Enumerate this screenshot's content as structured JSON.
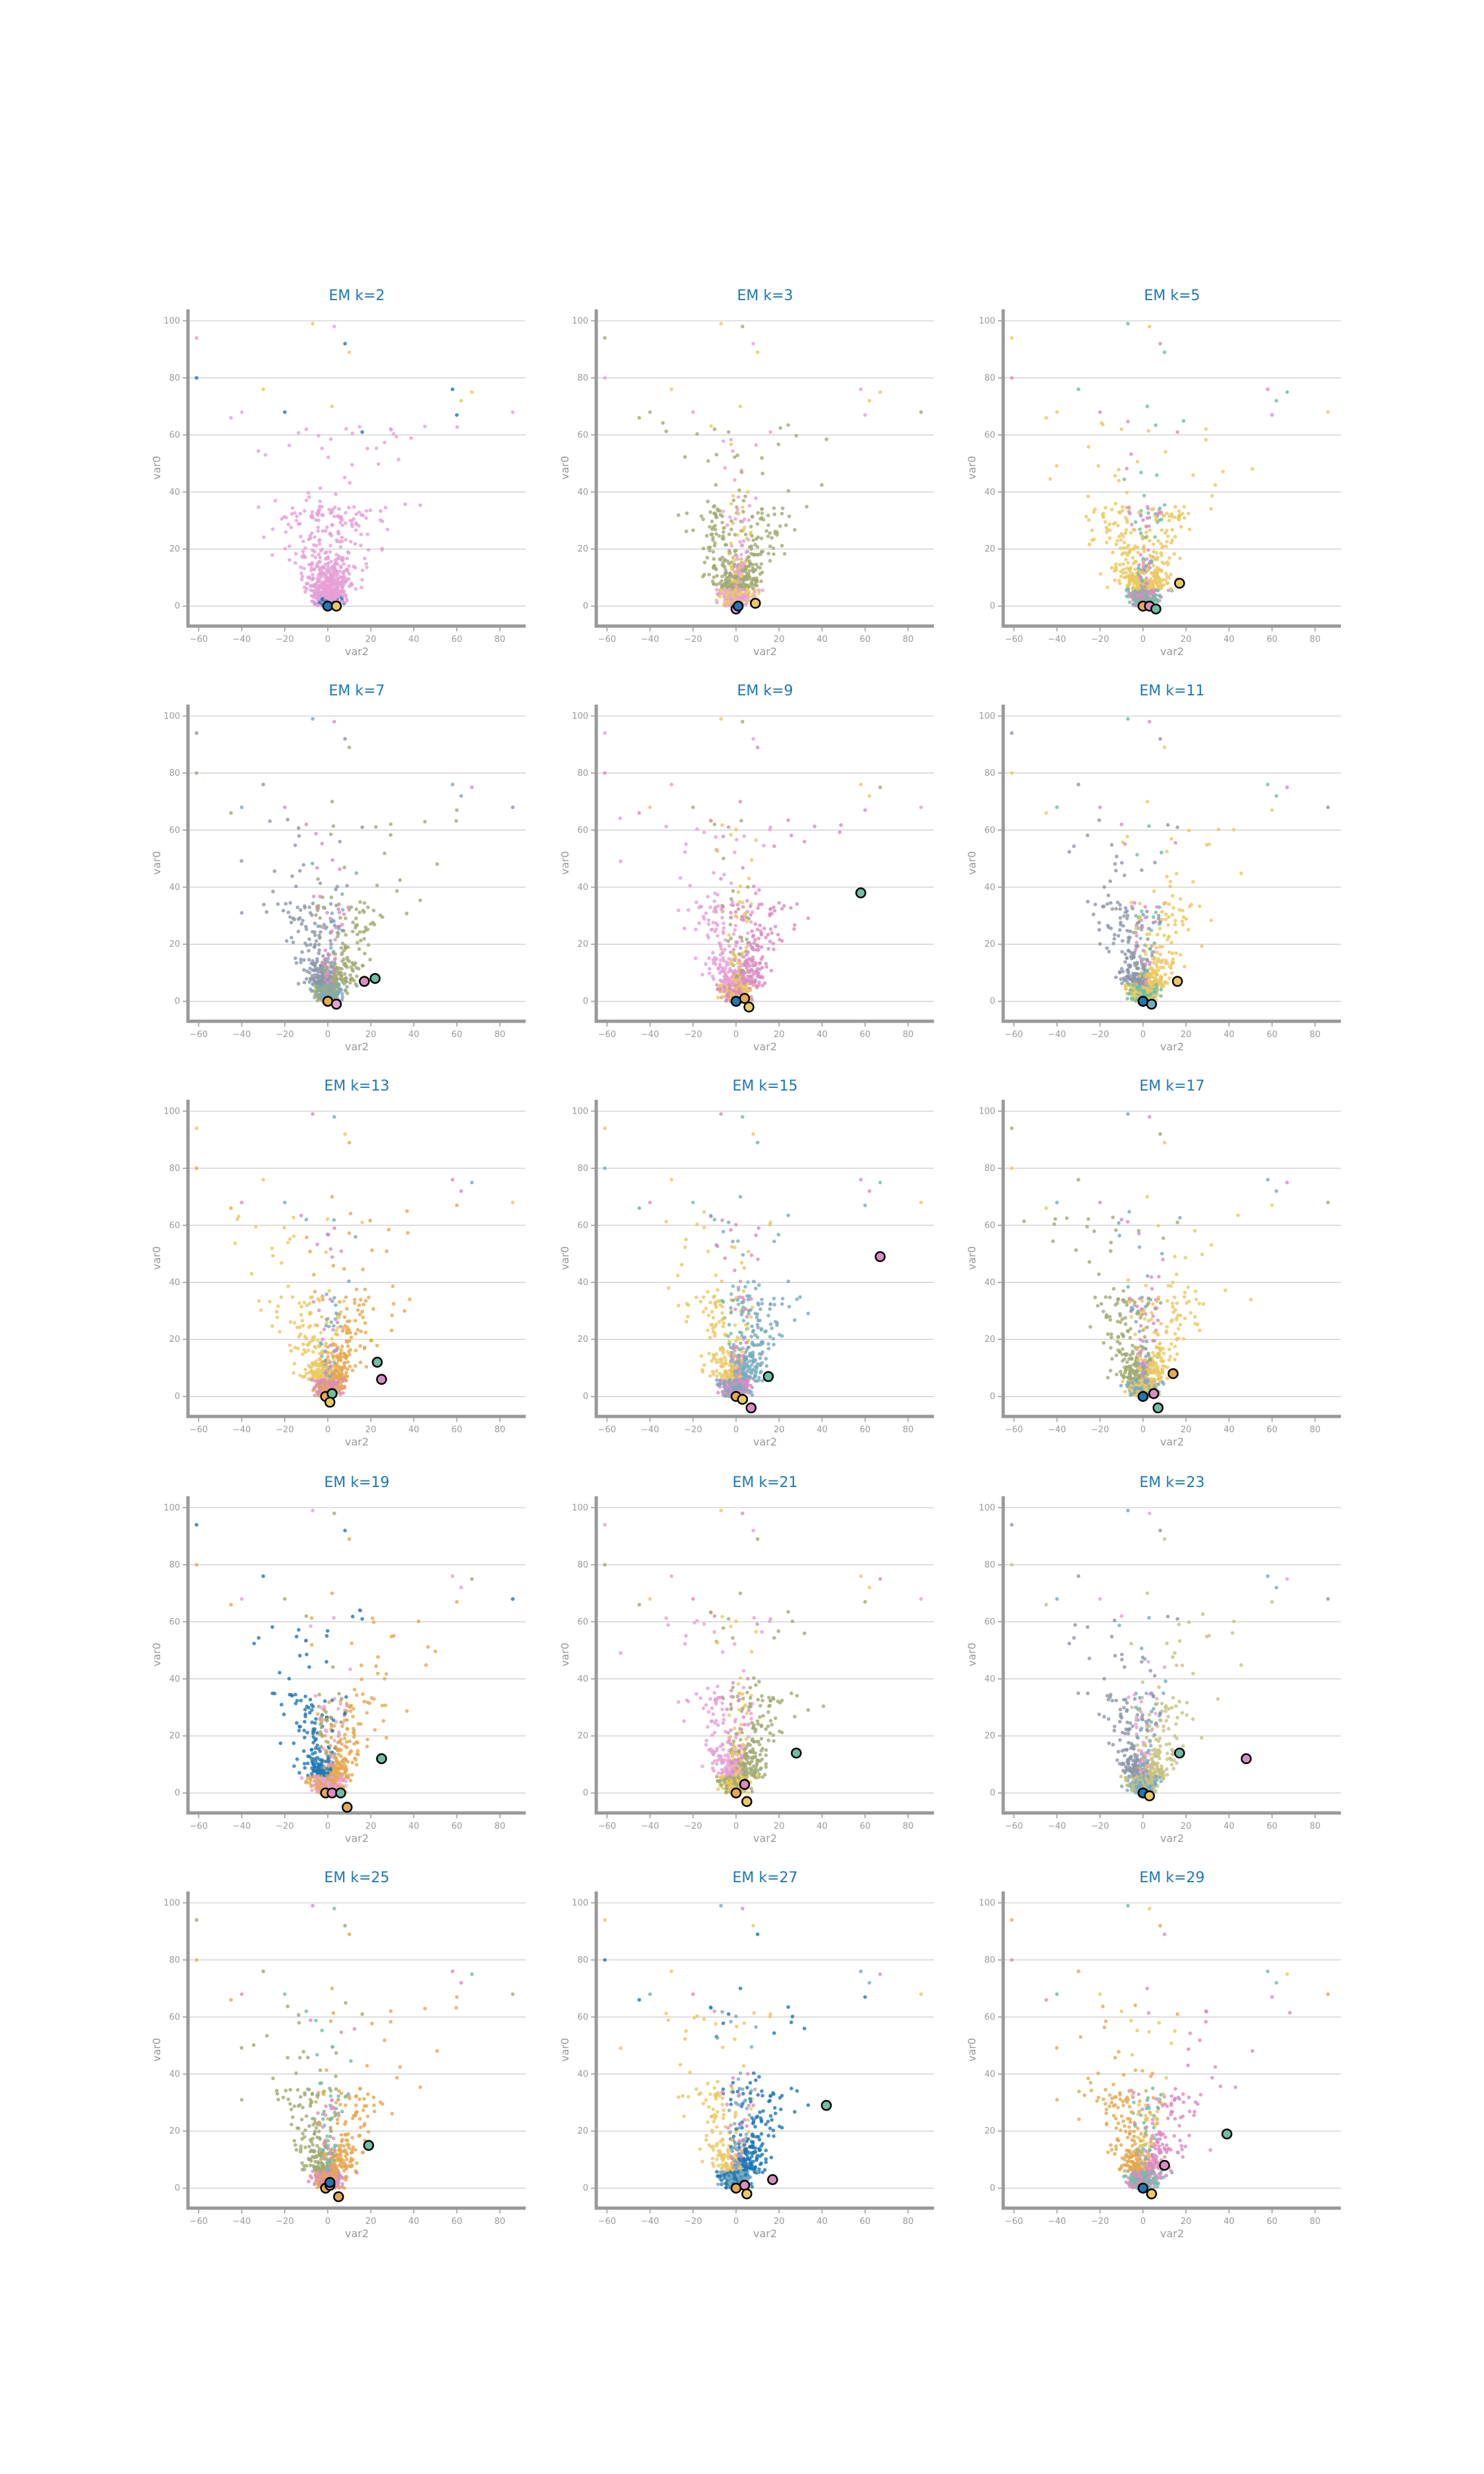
{
  "palette": [
    "#e6a0d6",
    "#a0aa73",
    "#ebc862",
    "#8c96aa",
    "#d98cc0",
    "#6ebea5",
    "#e6a850",
    "#78aabe",
    "#1f77b4",
    "#c8c082"
  ],
  "chart_data": [
    {
      "type": "scatter",
      "title": "EM k=2",
      "xlabel": "var2",
      "ylabel": "var0",
      "xlim": [
        -65,
        92
      ],
      "ylim": [
        -7,
        104
      ],
      "xticks": [
        -60,
        -40,
        -20,
        0,
        20,
        40,
        60,
        80
      ],
      "yticks": [
        0,
        20,
        40,
        60,
        80,
        100
      ],
      "grid": "horizontal",
      "dominant_colors": [
        "#e6a0d6",
        "#1f77b4",
        "#ebc862"
      ],
      "centroids": [
        {
          "x": 0,
          "y": 0,
          "color": "#1f77b4"
        },
        {
          "x": 4,
          "y": 0,
          "color": "#ebc862"
        }
      ]
    },
    {
      "type": "scatter",
      "title": "EM k=3",
      "xlabel": "var2",
      "ylabel": "var0",
      "xlim": [
        -65,
        92
      ],
      "ylim": [
        -7,
        104
      ],
      "xticks": [
        -60,
        -40,
        -20,
        0,
        20,
        40,
        60,
        80
      ],
      "yticks": [
        0,
        20,
        40,
        60,
        80,
        100
      ],
      "grid": "horizontal",
      "dominant_colors": [
        "#a0aa73",
        "#e6a0d6",
        "#ebc862"
      ],
      "centroids": [
        {
          "x": 0,
          "y": -1,
          "color": "#e6a0d6"
        },
        {
          "x": 1,
          "y": 0,
          "color": "#1f77b4"
        },
        {
          "x": 9,
          "y": 1,
          "color": "#ebc862"
        }
      ]
    },
    {
      "type": "scatter",
      "title": "EM k=5",
      "xlabel": "var2",
      "ylabel": "var0",
      "xlim": [
        -65,
        92
      ],
      "ylim": [
        -7,
        104
      ],
      "xticks": [
        -60,
        -40,
        -20,
        0,
        20,
        40,
        60,
        80
      ],
      "yticks": [
        0,
        20,
        40,
        60,
        80,
        100
      ],
      "grid": "horizontal",
      "dominant_colors": [
        "#ebc862",
        "#d98cc0",
        "#6ebea5"
      ],
      "centroids": [
        {
          "x": 0,
          "y": 0,
          "color": "#e6a850"
        },
        {
          "x": 3,
          "y": 0,
          "color": "#d98cc0"
        },
        {
          "x": 6,
          "y": -1,
          "color": "#6ebea5"
        },
        {
          "x": 17,
          "y": 8,
          "color": "#ebc862"
        }
      ]
    },
    {
      "type": "scatter",
      "title": "EM k=7",
      "xlabel": "var2",
      "ylabel": "var0",
      "xlim": [
        -65,
        92
      ],
      "ylim": [
        -7,
        104
      ],
      "xticks": [
        -60,
        -40,
        -20,
        0,
        20,
        40,
        60,
        80
      ],
      "yticks": [
        0,
        20,
        40,
        60,
        80,
        100
      ],
      "grid": "horizontal",
      "dominant_colors": [
        "#8c96aa",
        "#a0aa73",
        "#78aabe",
        "#d98cc0"
      ],
      "centroids": [
        {
          "x": 0,
          "y": 0,
          "color": "#e6a850"
        },
        {
          "x": 4,
          "y": -1,
          "color": "#e6a0d6"
        },
        {
          "x": 17,
          "y": 7,
          "color": "#d98cc0"
        },
        {
          "x": 22,
          "y": 8,
          "color": "#6ebea5"
        }
      ]
    },
    {
      "type": "scatter",
      "title": "EM k=9",
      "xlabel": "var2",
      "ylabel": "var0",
      "xlim": [
        -65,
        92
      ],
      "ylim": [
        -7,
        104
      ],
      "xticks": [
        -60,
        -40,
        -20,
        0,
        20,
        40,
        60,
        80
      ],
      "yticks": [
        0,
        20,
        40,
        60,
        80,
        100
      ],
      "grid": "horizontal",
      "dominant_colors": [
        "#e6a0d6",
        "#d98cc0",
        "#ebc862",
        "#a0aa73"
      ],
      "centroids": [
        {
          "x": 0,
          "y": 0,
          "color": "#1f77b4"
        },
        {
          "x": 4,
          "y": 1,
          "color": "#e6a850"
        },
        {
          "x": 6,
          "y": -2,
          "color": "#ebc862"
        },
        {
          "x": 58,
          "y": 38,
          "color": "#6ebea5"
        }
      ]
    },
    {
      "type": "scatter",
      "title": "EM k=11",
      "xlabel": "var2",
      "ylabel": "var0",
      "xlim": [
        -65,
        92
      ],
      "ylim": [
        -7,
        104
      ],
      "xticks": [
        -60,
        -40,
        -20,
        0,
        20,
        40,
        60,
        80
      ],
      "yticks": [
        0,
        20,
        40,
        60,
        80,
        100
      ],
      "grid": "horizontal",
      "dominant_colors": [
        "#8c96aa",
        "#ebc862",
        "#6ebea5",
        "#d98cc0"
      ],
      "centroids": [
        {
          "x": 0,
          "y": 0,
          "color": "#1f77b4"
        },
        {
          "x": 4,
          "y": -1,
          "color": "#78aabe"
        },
        {
          "x": 16,
          "y": 7,
          "color": "#ebc862"
        }
      ]
    },
    {
      "type": "scatter",
      "title": "EM k=13",
      "xlabel": "var2",
      "ylabel": "var0",
      "xlim": [
        -65,
        92
      ],
      "ylim": [
        -7,
        104
      ],
      "xticks": [
        -60,
        -40,
        -20,
        0,
        20,
        40,
        60,
        80
      ],
      "yticks": [
        0,
        20,
        40,
        60,
        80,
        100
      ],
      "grid": "horizontal",
      "dominant_colors": [
        "#ebc862",
        "#e6a850",
        "#d98cc0",
        "#78aabe"
      ],
      "centroids": [
        {
          "x": -1,
          "y": 0,
          "color": "#e6a850"
        },
        {
          "x": 2,
          "y": 1,
          "color": "#6ebea5"
        },
        {
          "x": 1,
          "y": -2,
          "color": "#ebc862"
        },
        {
          "x": 23,
          "y": 12,
          "color": "#6ebea5"
        },
        {
          "x": 25,
          "y": 6,
          "color": "#d98cc0"
        }
      ]
    },
    {
      "type": "scatter",
      "title": "EM k=15",
      "xlabel": "var2",
      "ylabel": "var0",
      "xlim": [
        -65,
        92
      ],
      "ylim": [
        -7,
        104
      ],
      "xticks": [
        -60,
        -40,
        -20,
        0,
        20,
        40,
        60,
        80
      ],
      "yticks": [
        0,
        20,
        40,
        60,
        80,
        100
      ],
      "grid": "horizontal",
      "dominant_colors": [
        "#ebc862",
        "#78aabe",
        "#d98cc0",
        "#6ebea5"
      ],
      "centroids": [
        {
          "x": 0,
          "y": 0,
          "color": "#e6a850"
        },
        {
          "x": 3,
          "y": -1,
          "color": "#ebc862"
        },
        {
          "x": 7,
          "y": -4,
          "color": "#d98cc0"
        },
        {
          "x": 15,
          "y": 7,
          "color": "#6ebea5"
        },
        {
          "x": 67,
          "y": 49,
          "color": "#d98cc0"
        }
      ]
    },
    {
      "type": "scatter",
      "title": "EM k=17",
      "xlabel": "var2",
      "ylabel": "var0",
      "xlim": [
        -65,
        92
      ],
      "ylim": [
        -7,
        104
      ],
      "xticks": [
        -60,
        -40,
        -20,
        0,
        20,
        40,
        60,
        80
      ],
      "yticks": [
        0,
        20,
        40,
        60,
        80,
        100
      ],
      "grid": "horizontal",
      "dominant_colors": [
        "#a0aa73",
        "#ebc862",
        "#78aabe",
        "#d98cc0"
      ],
      "centroids": [
        {
          "x": 0,
          "y": 0,
          "color": "#1f77b4"
        },
        {
          "x": 5,
          "y": 1,
          "color": "#d98cc0"
        },
        {
          "x": 7,
          "y": -4,
          "color": "#6ebea5"
        },
        {
          "x": 14,
          "y": 8,
          "color": "#e6a850"
        }
      ]
    },
    {
      "type": "scatter",
      "title": "EM k=19",
      "xlabel": "var2",
      "ylabel": "var0",
      "xlim": [
        -65,
        92
      ],
      "ylim": [
        -7,
        104
      ],
      "xticks": [
        -60,
        -40,
        -20,
        0,
        20,
        40,
        60,
        80
      ],
      "yticks": [
        0,
        20,
        40,
        60,
        80,
        100
      ],
      "grid": "horizontal",
      "dominant_colors": [
        "#1f77b4",
        "#e6a850",
        "#e6a0d6",
        "#a0aa73"
      ],
      "centroids": [
        {
          "x": -1,
          "y": 0,
          "color": "#e6a850"
        },
        {
          "x": 2,
          "y": 0,
          "color": "#d98cc0"
        },
        {
          "x": 6,
          "y": 0,
          "color": "#6ebea5"
        },
        {
          "x": 9,
          "y": -5,
          "color": "#e6a850"
        },
        {
          "x": 25,
          "y": 12,
          "color": "#6ebea5"
        }
      ]
    },
    {
      "type": "scatter",
      "title": "EM k=21",
      "xlabel": "var2",
      "ylabel": "var0",
      "xlim": [
        -65,
        92
      ],
      "ylim": [
        -7,
        104
      ],
      "xticks": [
        -60,
        -40,
        -20,
        0,
        20,
        40,
        60,
        80
      ],
      "yticks": [
        0,
        20,
        40,
        60,
        80,
        100
      ],
      "grid": "horizontal",
      "dominant_colors": [
        "#e6a0d6",
        "#a0aa73",
        "#ebc862",
        "#d98cc0"
      ],
      "centroids": [
        {
          "x": 0,
          "y": 0,
          "color": "#e6a850"
        },
        {
          "x": 4,
          "y": 3,
          "color": "#d98cc0"
        },
        {
          "x": 5,
          "y": -3,
          "color": "#ebc862"
        },
        {
          "x": 28,
          "y": 14,
          "color": "#6ebea5"
        }
      ]
    },
    {
      "type": "scatter",
      "title": "EM k=23",
      "xlabel": "var2",
      "ylabel": "var0",
      "xlim": [
        -65,
        92
      ],
      "ylim": [
        -7,
        104
      ],
      "xticks": [
        -60,
        -40,
        -20,
        0,
        20,
        40,
        60,
        80
      ],
      "yticks": [
        0,
        20,
        40,
        60,
        80,
        100
      ],
      "grid": "horizontal",
      "dominant_colors": [
        "#8c96aa",
        "#c8c082",
        "#78aabe",
        "#e6a0d6"
      ],
      "centroids": [
        {
          "x": 0,
          "y": 0,
          "color": "#1f77b4"
        },
        {
          "x": 3,
          "y": -1,
          "color": "#ebc862"
        },
        {
          "x": 17,
          "y": 14,
          "color": "#6ebea5"
        },
        {
          "x": 48,
          "y": 12,
          "color": "#d98cc0"
        }
      ]
    },
    {
      "type": "scatter",
      "title": "EM k=25",
      "xlabel": "var2",
      "ylabel": "var0",
      "xlim": [
        -65,
        92
      ],
      "ylim": [
        -7,
        104
      ],
      "xticks": [
        -60,
        -40,
        -20,
        0,
        20,
        40,
        60,
        80
      ],
      "yticks": [
        0,
        20,
        40,
        60,
        80,
        100
      ],
      "grid": "horizontal",
      "dominant_colors": [
        "#a0aa73",
        "#e6a850",
        "#d98cc0",
        "#6ebea5"
      ],
      "centroids": [
        {
          "x": -1,
          "y": 0,
          "color": "#e6a850"
        },
        {
          "x": 1,
          "y": 1,
          "color": "#d98cc0"
        },
        {
          "x": 1,
          "y": 2,
          "color": "#1f77b4"
        },
        {
          "x": 5,
          "y": -3,
          "color": "#e6a850"
        },
        {
          "x": 19,
          "y": 15,
          "color": "#6ebea5"
        }
      ]
    },
    {
      "type": "scatter",
      "title": "EM k=27",
      "xlabel": "var2",
      "ylabel": "var0",
      "xlim": [
        -65,
        92
      ],
      "ylim": [
        -7,
        104
      ],
      "xticks": [
        -60,
        -40,
        -20,
        0,
        20,
        40,
        60,
        80
      ],
      "yticks": [
        0,
        20,
        40,
        60,
        80,
        100
      ],
      "grid": "horizontal",
      "dominant_colors": [
        "#ebc862",
        "#1f77b4",
        "#78aabe",
        "#d98cc0"
      ],
      "centroids": [
        {
          "x": 0,
          "y": 0,
          "color": "#e6a850"
        },
        {
          "x": 4,
          "y": 1,
          "color": "#d98cc0"
        },
        {
          "x": 5,
          "y": -2,
          "color": "#ebc862"
        },
        {
          "x": 17,
          "y": 3,
          "color": "#d98cc0"
        },
        {
          "x": 42,
          "y": 29,
          "color": "#6ebea5"
        }
      ]
    },
    {
      "type": "scatter",
      "title": "EM k=29",
      "xlabel": "var2",
      "ylabel": "var0",
      "xlim": [
        -65,
        92
      ],
      "ylim": [
        -7,
        104
      ],
      "xticks": [
        -60,
        -40,
        -20,
        0,
        20,
        40,
        60,
        80
      ],
      "yticks": [
        0,
        20,
        40,
        60,
        80,
        100
      ],
      "grid": "horizontal",
      "dominant_colors": [
        "#e6a850",
        "#d98cc0",
        "#6ebea5",
        "#ebc862"
      ],
      "centroids": [
        {
          "x": 0,
          "y": 0,
          "color": "#1f77b4"
        },
        {
          "x": 4,
          "y": -2,
          "color": "#ebc862"
        },
        {
          "x": 10,
          "y": 8,
          "color": "#d98cc0"
        },
        {
          "x": 39,
          "y": 19,
          "color": "#6ebea5"
        }
      ]
    }
  ]
}
